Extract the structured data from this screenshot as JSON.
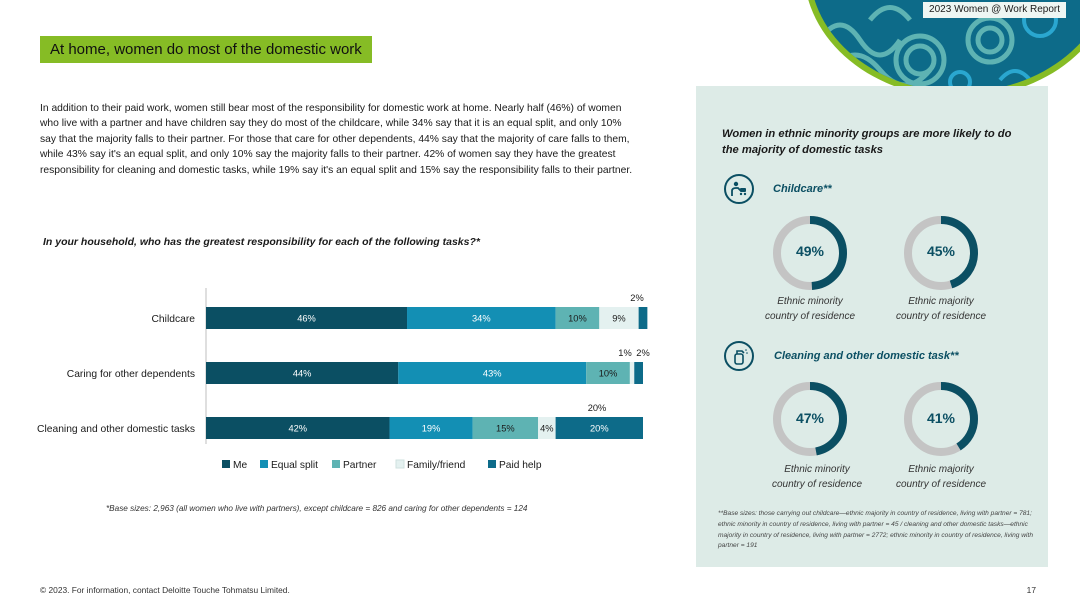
{
  "report_tag": "2023 Women @ Work Report",
  "heading": "At home, women do most of the domestic work",
  "intro": "In addition to their paid work, women still bear most of the responsibility for domestic work at home. Nearly half (46%) of women who live with a partner and have children say they do most of the childcare, while 34% say that it is an equal split, and only 10% say that the majority falls to their partner. For those that care for other dependents, 44% say that the majority of care falls to them, while 43% say it's an equal split, and only 10% say the majority falls to their partner. 42% of women say they have the greatest responsibility for cleaning and domestic tasks, while 19% say it's an equal split and 15% say the responsibility falls to their partner.",
  "chart_question": "In your household, who has the greatest responsibility for each of the following tasks?*",
  "chart_data": {
    "type": "bar",
    "orientation": "horizontal",
    "stacked": true,
    "categories": [
      "Childcare",
      "Caring for other dependents",
      "Cleaning and other domestic tasks"
    ],
    "series": [
      {
        "name": "Me",
        "values": [
          46,
          44,
          42
        ],
        "color": "#0b4f63"
      },
      {
        "name": "Equal split",
        "values": [
          34,
          43,
          19
        ],
        "color": "#138fb4"
      },
      {
        "name": "Partner",
        "values": [
          10,
          10,
          15
        ],
        "color": "#5eb3b3"
      },
      {
        "name": "Family/friend",
        "values": [
          9,
          1,
          4
        ],
        "color": "#e4f1f0"
      },
      {
        "name": "Paid help",
        "values": [
          2,
          2,
          20
        ],
        "color": "#0d6b89"
      }
    ],
    "data_labels": [
      [
        "46%",
        "34%",
        "10%",
        "9%",
        "2%"
      ],
      [
        "44%",
        "43%",
        "10%",
        "1%",
        "2%"
      ],
      [
        "42%",
        "19%",
        "15%",
        "4%",
        "20%"
      ]
    ],
    "xlim": [
      0,
      100
    ],
    "legend": "bottom",
    "grid": false
  },
  "base_note": "*Base sizes: 2,963 (all women who live with partners), except childcare = 826 and caring for other dependents = 124",
  "panel": {
    "title": "Women in ethnic minority groups are more likely to do the majority of domestic tasks",
    "sections": [
      {
        "label": "Childcare**",
        "icon": "childcare-icon",
        "donuts": [
          {
            "value": 49,
            "label": "49%",
            "caption_line1": "Ethnic minority",
            "caption_line2": "country of residence"
          },
          {
            "value": 45,
            "label": "45%",
            "caption_line1": "Ethnic majority",
            "caption_line2": "country of residence"
          }
        ]
      },
      {
        "label": "Cleaning and other domestic task**",
        "icon": "spray-bottle-icon",
        "donuts": [
          {
            "value": 47,
            "label": "47%",
            "caption_line1": "Ethnic minority",
            "caption_line2": "country of residence"
          },
          {
            "value": 41,
            "label": "41%",
            "caption_line1": "Ethnic majority",
            "caption_line2": "country of residence"
          }
        ]
      }
    ],
    "note": "**Base sizes: those carrying out childcare—ethnic majority in country of residence, living with partner = 781; ethnic minority in country of residence, living with partner = 45 / cleaning and other domestic tasks—ethnic majority in country of residence, living with partner = 2772; ethnic minority in country of residence, living with partner = 191"
  },
  "footer": "© 2023. For information, contact Deloitte Touche Tohmatsu Limited.",
  "page_number": "17",
  "colors": {
    "accent_green": "#86bc25",
    "dark_teal": "#0b4f63",
    "panel_bg": "#ddebe7",
    "donut_track": "#c4c4c4"
  }
}
